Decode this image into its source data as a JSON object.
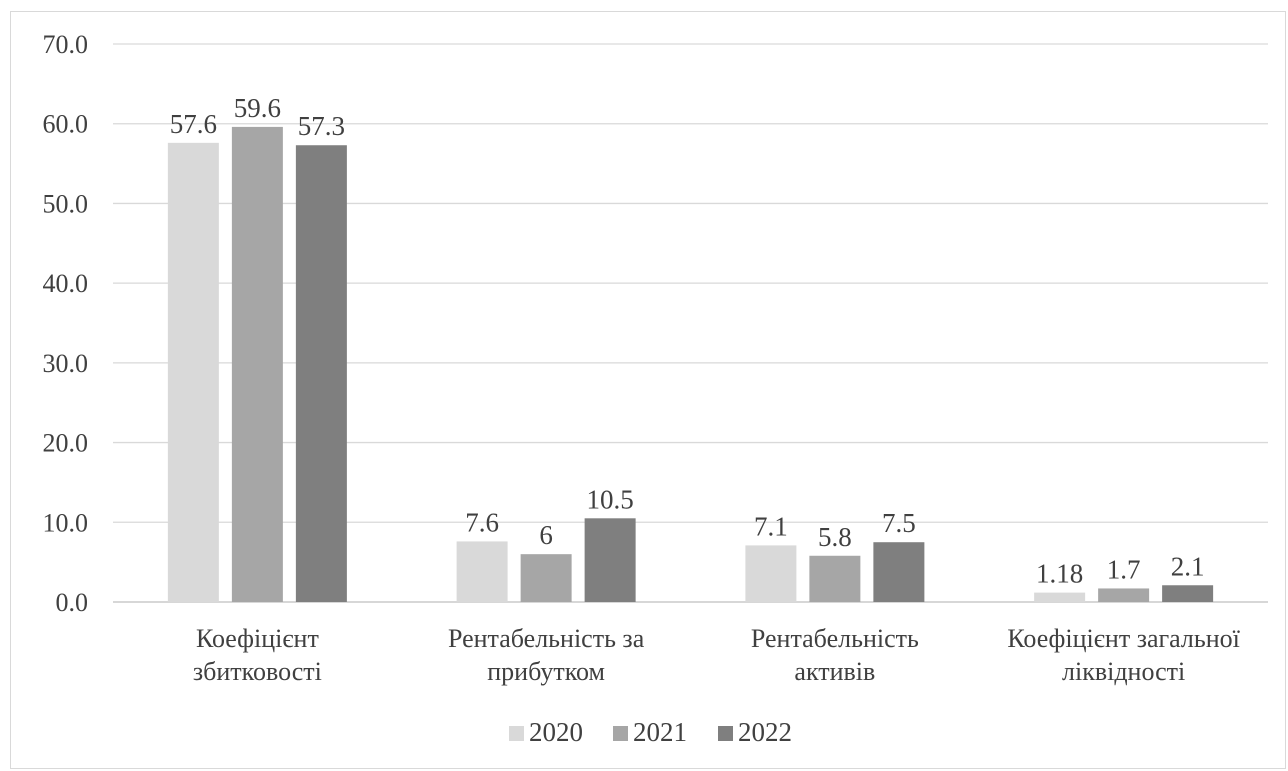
{
  "chart_data": {
    "type": "bar",
    "title": "",
    "xlabel": "",
    "ylabel": "",
    "ylim": [
      0,
      70
    ],
    "y_ticks": [
      "0.0",
      "10.0",
      "20.0",
      "30.0",
      "40.0",
      "50.0",
      "60.0",
      "70.0"
    ],
    "grid": true,
    "legend_position": "bottom",
    "categories": [
      [
        "Коефіцієнт",
        "збитковості"
      ],
      [
        "Рентабельність за",
        "прибутком"
      ],
      [
        "Рентабельність",
        "активів"
      ],
      [
        "Коефіцієнт загальної",
        "ліквідності"
      ]
    ],
    "series": [
      {
        "name": "2020",
        "color": "#d9d9d9",
        "values": [
          57.6,
          7.6,
          7.1,
          1.18
        ],
        "labels": [
          "57.6",
          "7.6",
          "7.1",
          "1.18"
        ]
      },
      {
        "name": "2021",
        "color": "#a6a6a6",
        "values": [
          59.6,
          6,
          5.8,
          1.7
        ],
        "labels": [
          "59.6",
          "6",
          "5.8",
          "1.7"
        ]
      },
      {
        "name": "2022",
        "color": "#7f7f7f",
        "values": [
          57.3,
          10.5,
          7.5,
          2.1
        ],
        "labels": [
          "57.3",
          "10.5",
          "7.5",
          "2.1"
        ]
      }
    ]
  }
}
